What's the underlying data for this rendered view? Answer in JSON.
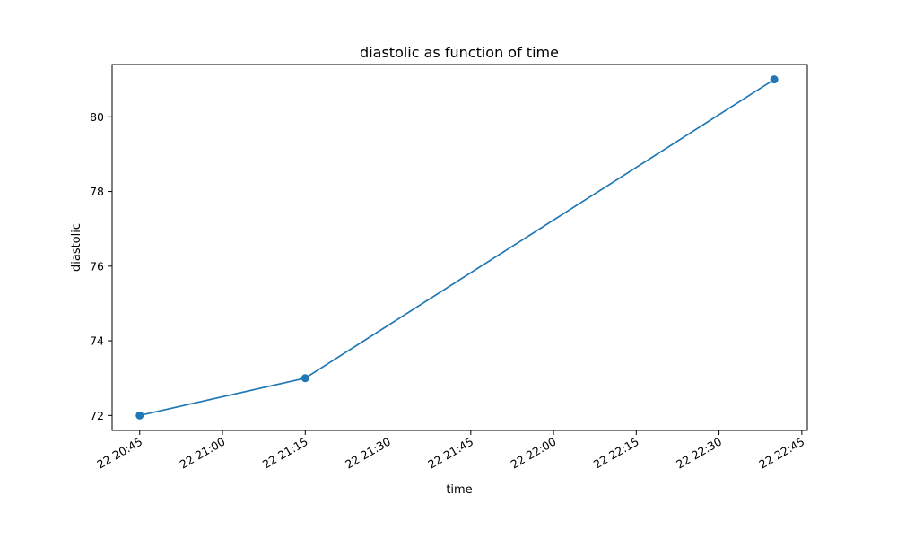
{
  "chart_data": {
    "type": "line",
    "title": "diastolic as function of time",
    "xlabel": "time",
    "ylabel": "diastolic",
    "x": [
      "22 20:45",
      "22 21:15",
      "22 22:40"
    ],
    "series": [
      {
        "values": [
          72,
          73,
          81
        ],
        "color": "#1f77b4",
        "marker": "circle"
      }
    ],
    "x_ticks": [
      "22 20:45",
      "22 21:00",
      "22 21:15",
      "22 21:30",
      "22 21:45",
      "22 22:00",
      "22 22:15",
      "22 22:30",
      "22 22:45"
    ],
    "y_ticks": [
      "72",
      "74",
      "76",
      "78",
      "80"
    ],
    "ylim": [
      71.6,
      81.4
    ],
    "xlim": [
      "22 20:40",
      "22 22:46"
    ],
    "grid": false,
    "legend": "none"
  }
}
